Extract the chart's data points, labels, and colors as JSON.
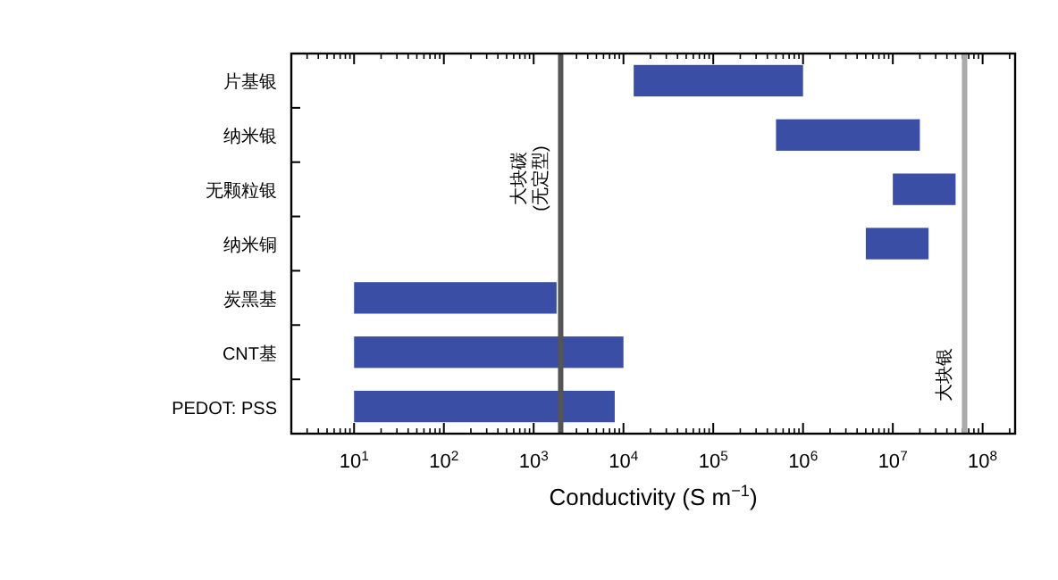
{
  "chart_data": {
    "type": "bar",
    "orientation": "horizontal",
    "xlabel": "Conductivity (S m$^{−1}$)",
    "log": "x",
    "categories": [
      "片基银",
      "纳米银",
      "无颗粒银",
      "纳米铜",
      "炭黑基",
      "CNT基",
      "PEDOT: PSS"
    ],
    "base": [
      13000,
      500000,
      10000000,
      5000000,
      10,
      10,
      10
    ],
    "values": [
      987000,
      19500000,
      40000000,
      20000000,
      1790,
      9990,
      7990
    ],
    "color": "#3a4ea6",
    "xlim": [
      2,
      230000000
    ],
    "xticks": [
      {
        "value": 10,
        "label": "10$^{1}$"
      },
      {
        "value": 100,
        "label": "10$^{2}$"
      },
      {
        "value": 1000,
        "label": "10$^{3}$"
      },
      {
        "value": 10000,
        "label": "10$^{4}$"
      },
      {
        "value": 100000,
        "label": "10$^{5}$"
      },
      {
        "value": 1000000,
        "label": "10$^{6}$"
      },
      {
        "value": 10000000,
        "label": "10$^{7}$"
      },
      {
        "value": 100000000,
        "label": "10$^{8}$"
      }
    ],
    "ref_lines": [
      {
        "axis": "x",
        "value": 2000,
        "label": "大块碳\n(无定型)",
        "color": "#555555"
      },
      {
        "axis": "x",
        "value": 63000000,
        "label": "大块银",
        "color": "#aaaaaa"
      }
    ],
    "grid": false
  }
}
